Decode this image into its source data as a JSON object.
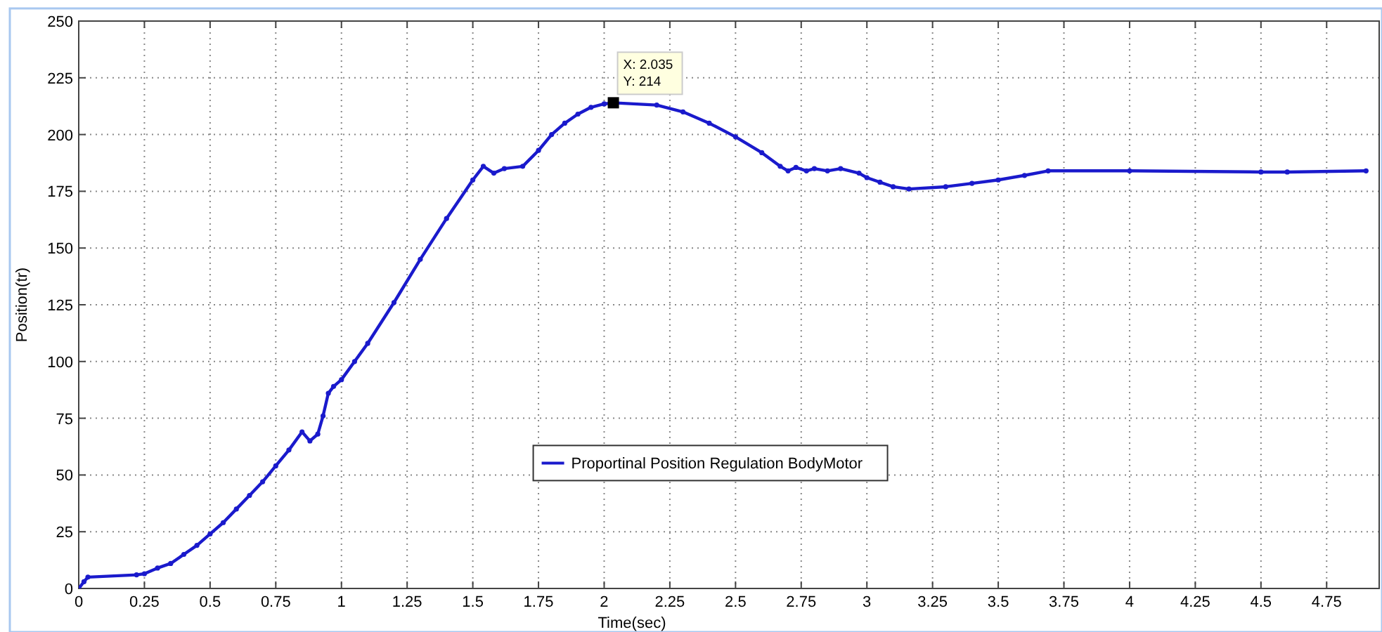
{
  "chart_data": {
    "type": "line",
    "xlabel": "Time(sec)",
    "ylabel": "Position(tr)",
    "xlim": [
      0,
      4.95
    ],
    "ylim": [
      0,
      250
    ],
    "xticks": [
      0,
      0.25,
      0.5,
      0.75,
      1,
      1.25,
      1.5,
      1.75,
      2,
      2.25,
      2.5,
      2.75,
      3,
      3.25,
      3.5,
      3.75,
      4,
      4.25,
      4.5,
      4.75
    ],
    "yticks": [
      0,
      25,
      50,
      75,
      100,
      125,
      150,
      175,
      200,
      225,
      250
    ],
    "grid": true,
    "legend": "bottom",
    "marker": "circle",
    "line_style": "solid",
    "annotations": [
      {
        "text": "X: 2.035\nY: 214",
        "x": 2.035,
        "y": 214
      }
    ],
    "series": [
      {
        "name": "Proportinal Position Regulation BodyMotor",
        "color": "#1a1acc",
        "x": [
          0,
          0.02,
          0.035,
          0.22,
          0.25,
          0.3,
          0.35,
          0.4,
          0.45,
          0.5,
          0.55,
          0.6,
          0.65,
          0.7,
          0.75,
          0.8,
          0.85,
          0.88,
          0.91,
          0.93,
          0.95,
          0.97,
          1.0,
          1.05,
          1.1,
          1.2,
          1.3,
          1.4,
          1.5,
          1.54,
          1.58,
          1.62,
          1.69,
          1.75,
          1.8,
          1.85,
          1.9,
          1.95,
          2.0,
          2.035,
          2.2,
          2.3,
          2.4,
          2.5,
          2.6,
          2.67,
          2.7,
          2.73,
          2.77,
          2.8,
          2.85,
          2.9,
          2.97,
          3.0,
          3.05,
          3.1,
          3.16,
          3.3,
          3.4,
          3.5,
          3.6,
          3.69,
          4.0,
          4.5,
          4.6,
          4.9
        ],
        "values": [
          0,
          3,
          5,
          6,
          6.5,
          9,
          11,
          15,
          19,
          24,
          29,
          35,
          41,
          47,
          54,
          61,
          69,
          65,
          68,
          76,
          86,
          89,
          92,
          100,
          108,
          126,
          145,
          163,
          180,
          186,
          183,
          185,
          186,
          193,
          200,
          205,
          209,
          212,
          213.5,
          214,
          213,
          210,
          205,
          199,
          192,
          186,
          184,
          185.5,
          184,
          185,
          184,
          185,
          183,
          181,
          179,
          177,
          176,
          177,
          178.5,
          180,
          182,
          184,
          184,
          183.5,
          183.5,
          184
        ]
      }
    ]
  }
}
